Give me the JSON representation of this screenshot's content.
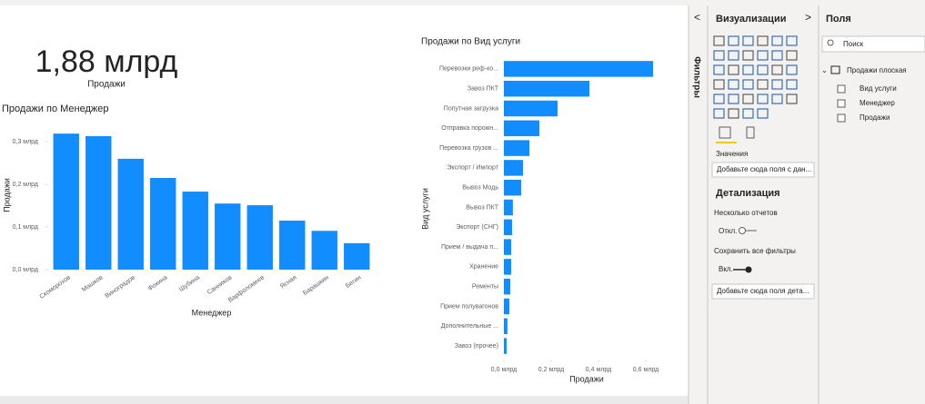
{
  "card": {
    "value": "1,88 млрд",
    "label": "Продажи"
  },
  "chart_data": [
    {
      "type": "vbar",
      "title": "Продажи по Менеджер",
      "x_label": "Менеджер",
      "y_label": "Продажи",
      "color": "#118dff",
      "categories": [
        "Скоморохов",
        "Машков",
        "Виноградов",
        "Фокина",
        "Шубина",
        "Санников",
        "Варфоломеев",
        "Ясная",
        "Барашкин",
        "Бегин"
      ],
      "values": [
        0.319,
        0.313,
        0.26,
        0.215,
        0.183,
        0.155,
        0.151,
        0.115,
        0.091,
        0.062
      ],
      "ylim": [
        0,
        0.33
      ],
      "yticks": [
        {
          "value": 0,
          "label": "0,0 млрд"
        },
        {
          "value": 0.1,
          "label": "0,1 млрд"
        },
        {
          "value": 0.2,
          "label": "0,2 млрд"
        },
        {
          "value": 0.3,
          "label": "0,3 млрд"
        }
      ]
    },
    {
      "type": "hbar",
      "title": "Продажи по Вид услуги",
      "x_label": "Продажи",
      "y_label": "Вид услуги",
      "color": "#118dff",
      "categories": [
        "Перевозки реф-ко...",
        "Завоз ПКТ",
        "Попутная загрузка",
        "Отправка порожн...",
        "Перевозка грузов ...",
        "Экспорт / Импорт",
        "Вывоз Модь",
        "Вывоз ПКТ",
        "Экспорт (СНГ)",
        "Прием / выдача п...",
        "Хранение",
        "Ременты",
        "Прием полувагонов",
        "Дополнительные ...",
        "Завоз (прочее)"
      ],
      "values": [
        0.631,
        0.362,
        0.227,
        0.15,
        0.108,
        0.081,
        0.073,
        0.038,
        0.035,
        0.031,
        0.031,
        0.027,
        0.023,
        0.015,
        0.012
      ],
      "xlim": [
        0,
        0.65
      ],
      "xticks": [
        {
          "value": 0,
          "label": "0,0 млрд"
        },
        {
          "value": 0.2,
          "label": "0,2 млрд"
        },
        {
          "value": 0.4,
          "label": "0,4 млрд"
        },
        {
          "value": 0.6,
          "label": "0,6 млрд"
        }
      ]
    }
  ],
  "filters_tab": "Фильтры",
  "visualizations_pane": {
    "title": "Визуализации",
    "values_label": "Значения",
    "values_well": "Добавьте сюда поля с дан...",
    "drillthrough": "Детализация",
    "cross_report": "Несколько отчетов",
    "cross_report_state": "Откл.",
    "keep_filters": "Сохранить все фильтры",
    "keep_filters_state": "Вкл.",
    "drill_well": "Добавьте сюда поля дета..."
  },
  "fields_pane": {
    "title": "Поля",
    "search": "Поиск",
    "table": "Продажи плоская",
    "fields": [
      "Вид услуги",
      "Менеджер",
      "Продажи"
    ]
  }
}
